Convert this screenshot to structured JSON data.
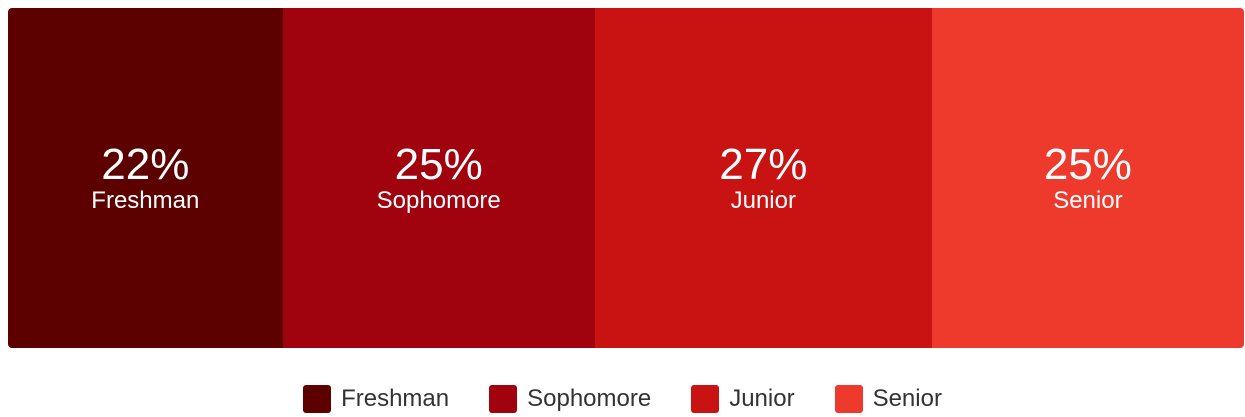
{
  "chart_data": {
    "type": "bar",
    "orientation": "horizontal-stacked-100",
    "categories": [
      "Freshman",
      "Sophomore",
      "Junior",
      "Senior"
    ],
    "values": [
      22,
      25,
      27,
      25
    ],
    "value_labels": [
      "22%",
      "25%",
      "27%",
      "25%"
    ],
    "colors": [
      "#5c0000",
      "#a0020e",
      "#c91212",
      "#ee3a2c"
    ],
    "legend_position": "bottom-center",
    "grid": false
  },
  "legend": {
    "items": [
      {
        "label": "Freshman",
        "color": "#5c0000"
      },
      {
        "label": "Sophomore",
        "color": "#a0020e"
      },
      {
        "label": "Junior",
        "color": "#c91212"
      },
      {
        "label": "Senior",
        "color": "#ee3a2c"
      }
    ]
  }
}
